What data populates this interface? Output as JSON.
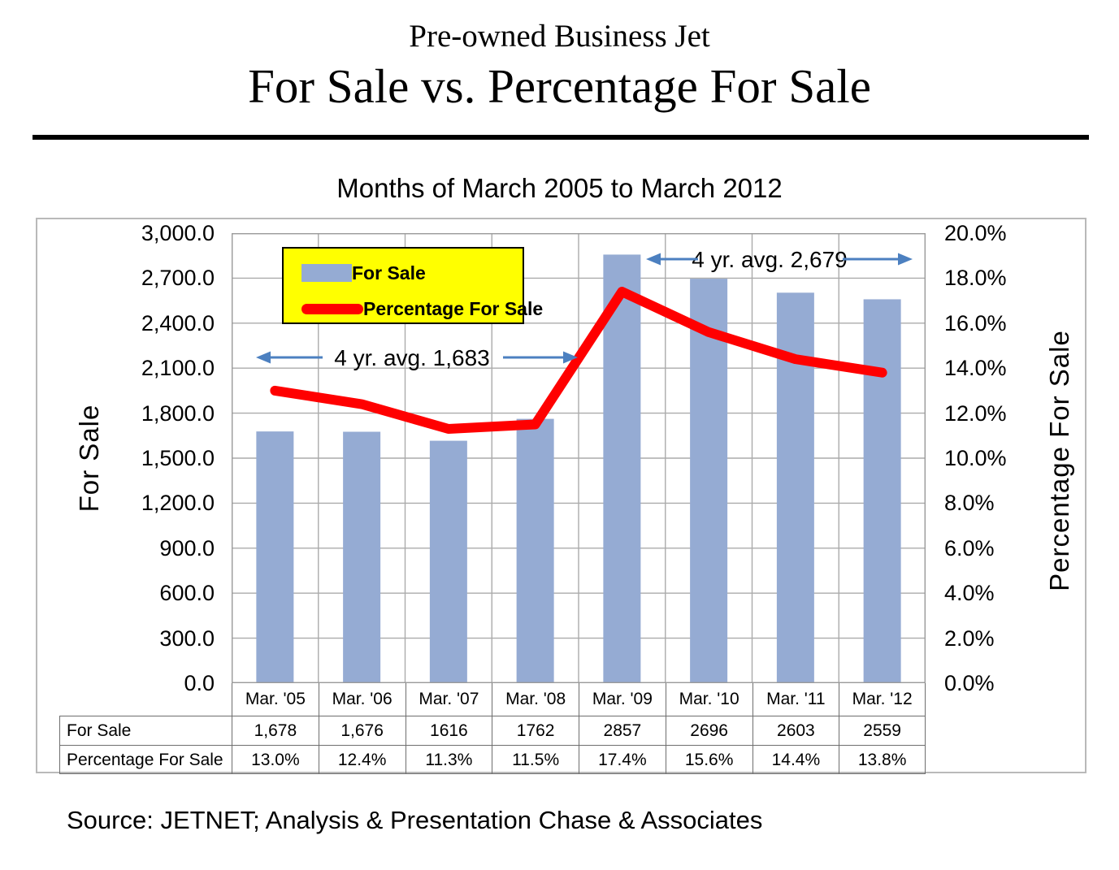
{
  "header": {
    "title_line1": "Pre-owned Business Jet",
    "title_line2": "For Sale vs. Percentage For Sale",
    "subtitle": "Months of March 2005 to March 2012"
  },
  "chart_data": {
    "type": "bar",
    "subtype": "combo-bar-line-dual-axis",
    "categories": [
      "Mar. '05",
      "Mar. '06",
      "Mar. '07",
      "Mar. '08",
      "Mar. '09",
      "Mar. '10",
      "Mar. '11",
      "Mar. '12"
    ],
    "series": [
      {
        "name": "For Sale",
        "type": "bar",
        "axis": "left",
        "color": "#95abd3",
        "values": [
          1678,
          1676,
          1616,
          1762,
          2857,
          2696,
          2603,
          2559
        ]
      },
      {
        "name": "Percentage For Sale",
        "type": "line",
        "axis": "right",
        "color": "#ff0000",
        "values": [
          13.0,
          12.4,
          11.3,
          11.5,
          17.4,
          15.6,
          14.4,
          13.8
        ]
      }
    ],
    "left_axis": {
      "title": "For Sale",
      "min": 0,
      "max": 3000,
      "step": 300,
      "tick_labels": [
        "3,000.0",
        "2,700.0",
        "2,400.0",
        "2,100.0",
        "1,800.0",
        "1,500.0",
        "1,200.0",
        "900.0",
        "600.0",
        "300.0",
        "0.0"
      ]
    },
    "right_axis": {
      "title": "Percentage For Sale",
      "min": 0,
      "max": 20,
      "step": 2,
      "tick_labels": [
        "20.0%",
        "18.0%",
        "16.0%",
        "14.0%",
        "12.0%",
        "10.0%",
        "8.0%",
        "6.0%",
        "4.0%",
        "2.0%",
        "0.0%"
      ]
    },
    "annotations": [
      {
        "label": "4 yr. avg. 1,683",
        "span_categories": [
          0,
          3
        ]
      },
      {
        "label": "4 yr. avg. 2,679",
        "span_categories": [
          4,
          7
        ]
      }
    ],
    "legend": {
      "position": "top-left",
      "background": "#ffff00"
    },
    "grid": "horizontal-and-vertical"
  },
  "table": {
    "rows": [
      {
        "header": "For Sale",
        "cells": [
          "1,678",
          "1,676",
          "1616",
          "1762",
          "2857",
          "2696",
          "2603",
          "2559"
        ]
      },
      {
        "header": "Percentage For Sale",
        "cells": [
          "13.0%",
          "12.4%",
          "11.3%",
          "11.5%",
          "17.4%",
          "15.6%",
          "14.4%",
          "13.8%"
        ]
      }
    ]
  },
  "source": "Source: JETNET; Analysis & Presentation Chase & Associates",
  "colors": {
    "bar": "#95abd3",
    "line": "#ff0000",
    "arrow": "#4c80c0",
    "grid": "#ababab",
    "plot_border": "#9a9a9a",
    "table_border": "#6e6e6e",
    "legend_bg": "#ffff00"
  }
}
